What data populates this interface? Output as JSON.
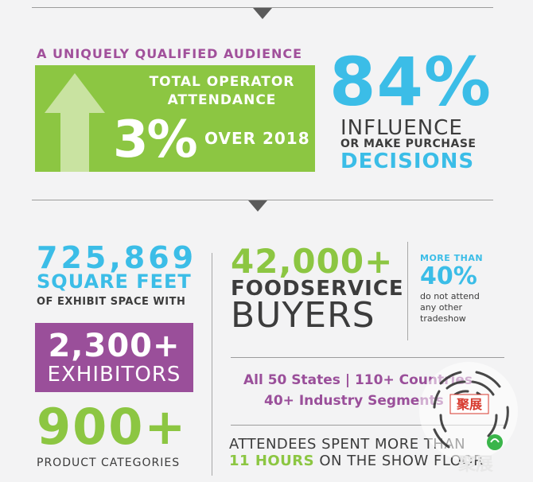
{
  "colors": {
    "green": "#8cc642",
    "purple": "#9a4f9a",
    "blue": "#3bbde7",
    "dark": "#3c3c3c"
  },
  "section1": {
    "kicker": "A UNIQUELY QUALIFIED AUDIENCE",
    "green_box": {
      "line1": "TOTAL OPERATOR",
      "line2": "ATTENDANCE",
      "percent": "3%",
      "over": "OVER 2018",
      "icon": "up-arrow-icon"
    },
    "stat": {
      "value": "84%",
      "line1": "INFLUENCE",
      "line2": "OR MAKE PURCHASE",
      "line3": "DECISIONS"
    }
  },
  "section2": {
    "square": {
      "number": "725,869",
      "label": "SQUARE FEET",
      "sub": "OF EXHIBIT SPACE WITH"
    },
    "exhibitors": {
      "number": "2,300+",
      "label": "EXHIBITORS"
    },
    "categories": {
      "number": "900+",
      "label": "PRODUCT CATEGORIES"
    },
    "buyers": {
      "number": "42,000+",
      "line1": "FOODSERVICE",
      "line2": "BUYERS"
    },
    "tradeshow": {
      "kicker": "MORE THAN",
      "value": "40%",
      "line1": "do not attend",
      "line2": "any other",
      "line3": "tradeshow"
    },
    "reach": {
      "line1": "All 50 States | 110+ Countries",
      "line2": "40+ Industry Segments"
    },
    "attendees": {
      "line1": "ATTENDEES SPENT MORE THAN",
      "hours": "11 HOURS",
      "rest": "ON THE SHOW FLOOR"
    }
  },
  "overlay": {
    "qr_label": "聚展",
    "watermark": "聚展"
  }
}
